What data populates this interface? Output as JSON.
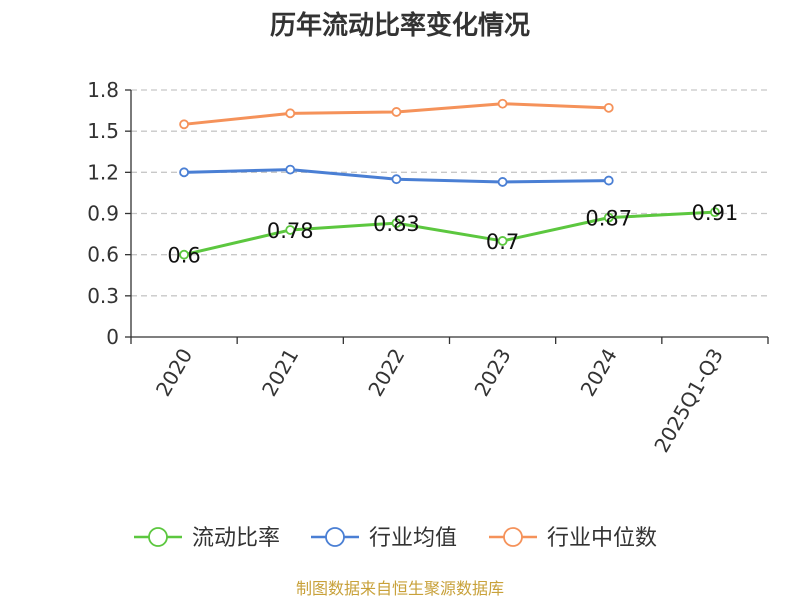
{
  "chart_data": {
    "type": "line",
    "title": "历年流动比率变化情况",
    "categories": [
      "2020",
      "2021",
      "2022",
      "2023",
      "2024",
      "2025Q1-Q3"
    ],
    "series": [
      {
        "name": "流动比率",
        "values": [
          0.6,
          0.78,
          0.83,
          0.7,
          0.87,
          0.91
        ],
        "color": "#5cc73f",
        "labels": [
          "0.6",
          "0.78",
          "0.83",
          "0.7",
          "0.87",
          "0.91"
        ]
      },
      {
        "name": "行业均值",
        "values": [
          1.2,
          1.22,
          1.15,
          1.13,
          1.14,
          null
        ],
        "color": "#4a7fd4"
      },
      {
        "name": "行业中位数",
        "values": [
          1.55,
          1.63,
          1.64,
          1.7,
          1.67,
          null
        ],
        "color": "#f5925a"
      }
    ],
    "ylim": [
      0,
      1.8
    ],
    "yticks": [
      "0",
      "0.3",
      "0.6",
      "0.9",
      "1.2",
      "1.5",
      "1.8"
    ],
    "grid": true,
    "legend_position": "bottom"
  },
  "source_text": "制图数据来自恒生聚源数据库"
}
